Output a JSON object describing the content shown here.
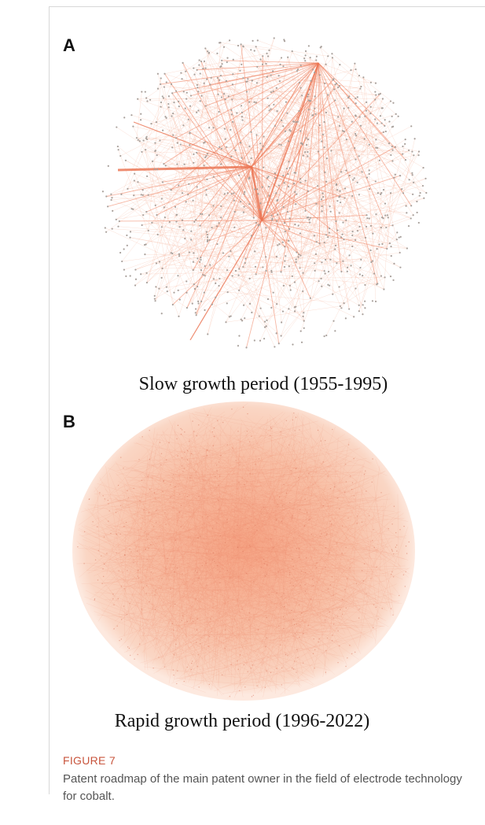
{
  "figure": {
    "panels": [
      {
        "letter": "A",
        "caption": "Slow growth period (1955-1995)"
      },
      {
        "letter": "B",
        "caption": "Rapid growth period (1996-2022)"
      }
    ],
    "label": "FIGURE 7",
    "caption": "Patent roadmap of the main patent owner in the field of electrode technology for cobalt."
  }
}
